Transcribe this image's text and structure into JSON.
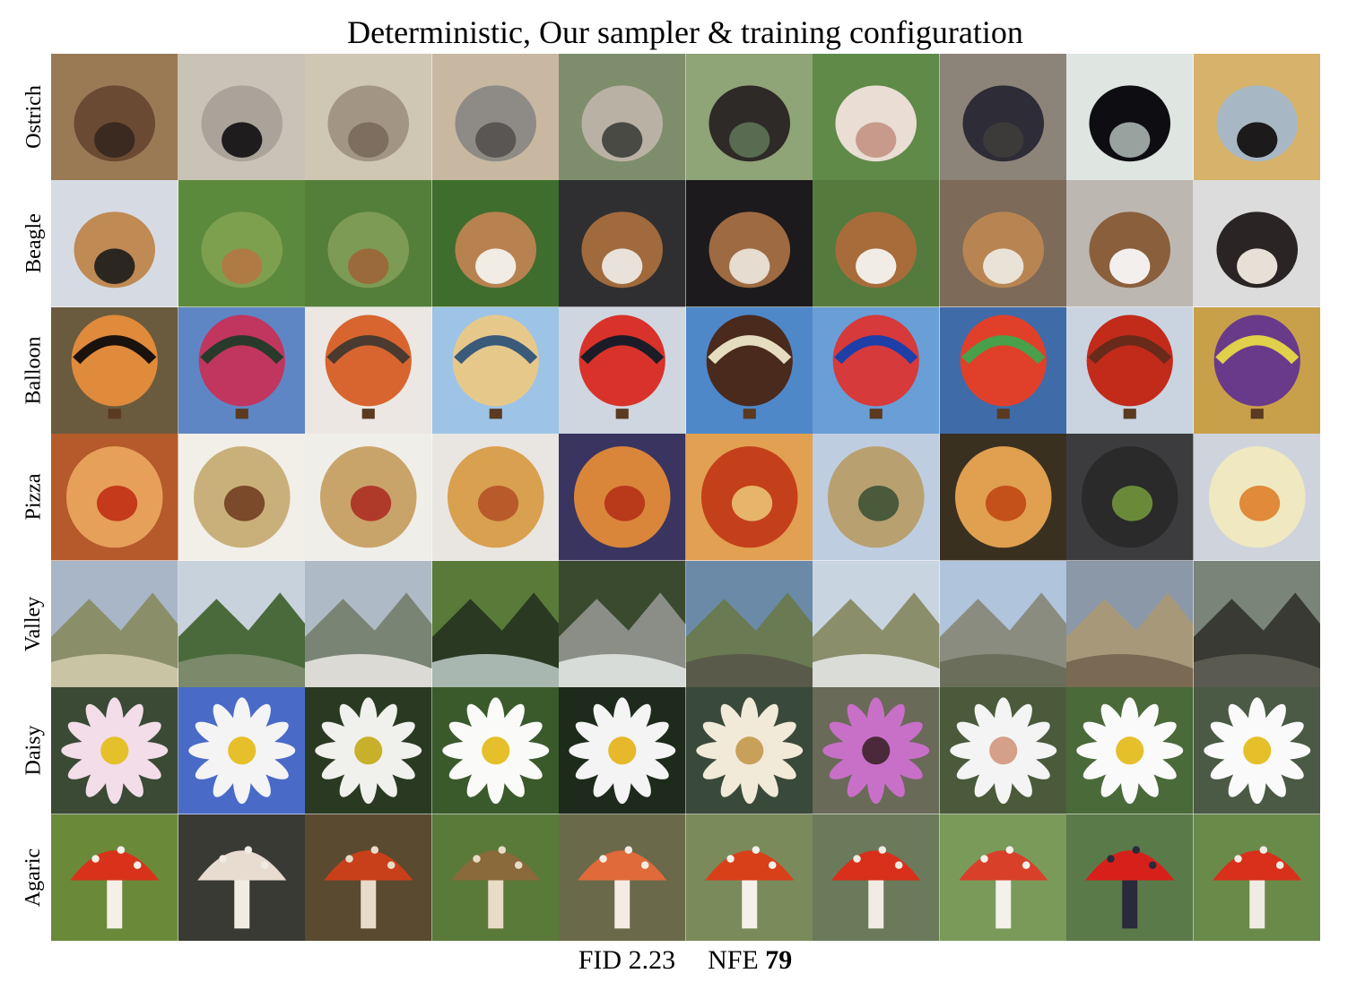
{
  "title": "Deterministic, Our sampler & training configuration",
  "rows": [
    {
      "label": "Ostrich"
    },
    {
      "label": "Beagle"
    },
    {
      "label": "Balloon"
    },
    {
      "label": "Pizza"
    },
    {
      "label": "Valley"
    },
    {
      "label": "Daisy"
    },
    {
      "label": "Agaric"
    }
  ],
  "footer": {
    "fid_label": "FID",
    "fid_value": "2.23",
    "nfe_label": "NFE",
    "nfe_value": "79"
  }
}
